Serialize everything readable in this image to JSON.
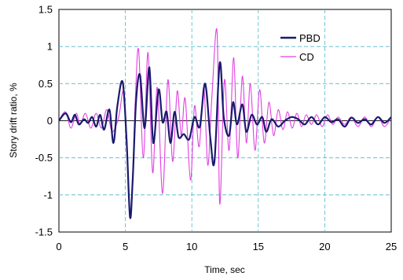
{
  "chart_data": {
    "type": "line",
    "xlabel": "Time, sec",
    "ylabel": "Story drift ratio, %",
    "xlim": [
      0,
      25
    ],
    "ylim": [
      -1.5,
      1.5
    ],
    "xticks": [
      "0",
      "5",
      "10",
      "15",
      "20",
      "25"
    ],
    "yticks": [
      "1.5",
      "1",
      "0.5",
      "0",
      "-0.5",
      "-1",
      "-1.5"
    ],
    "grid": true,
    "grid_style": "dashed",
    "legend_position": "top-right",
    "colors": {
      "PBD": "#1a1a6e",
      "CD": "#e040e0",
      "grid": "#4fb8c8",
      "zero_line": "#1a1a1a"
    },
    "series": [
      {
        "name": "PBD",
        "x": [
          0,
          0.5,
          0.9,
          1.2,
          1.5,
          1.9,
          2.2,
          2.5,
          2.8,
          3.1,
          3.4,
          3.8,
          4.1,
          4.4,
          4.8,
          5.1,
          5.35,
          5.55,
          5.8,
          6.1,
          6.45,
          6.8,
          7.1,
          7.5,
          7.8,
          8.1,
          8.4,
          8.7,
          9.0,
          9.4,
          9.8,
          10.2,
          10.6,
          11.0,
          11.4,
          11.7,
          12.1,
          12.4,
          12.8,
          13.1,
          13.4,
          13.8,
          14.1,
          14.5,
          14.9,
          15.3,
          15.6,
          16.0,
          16.5,
          17.0,
          17.5,
          18.0,
          18.5,
          19.0,
          19.5,
          20.0,
          20.5,
          21.0,
          21.5,
          22.0,
          22.5,
          23.0,
          23.5,
          24.0,
          24.5,
          25.0
        ],
        "y": [
          0,
          0.1,
          -0.02,
          0.08,
          -0.05,
          0.02,
          -0.03,
          0.05,
          -0.08,
          0.08,
          -0.12,
          0.15,
          -0.3,
          0.2,
          0.52,
          -0.3,
          -1.3,
          -0.8,
          0.25,
          0.62,
          -0.1,
          0.72,
          -0.3,
          0.42,
          -0.02,
          0.12,
          -0.3,
          0.12,
          -0.22,
          -0.18,
          -0.25,
          0.05,
          -0.08,
          0.5,
          -0.25,
          -0.55,
          0.78,
          0.05,
          -0.2,
          0.25,
          -0.05,
          0.22,
          -0.15,
          0.08,
          -0.05,
          0.05,
          -0.15,
          0.02,
          -0.08,
          0.0,
          0.05,
          0.02,
          -0.05,
          0.05,
          -0.05,
          0.05,
          -0.02,
          0.02,
          -0.08,
          0.04,
          -0.03,
          0.02,
          -0.05,
          0.05,
          -0.03,
          0.05
        ]
      },
      {
        "name": "CD",
        "x": [
          0,
          0.5,
          0.9,
          1.3,
          1.6,
          2.0,
          2.4,
          2.8,
          3.2,
          3.6,
          4.0,
          4.5,
          4.85,
          5.1,
          5.4,
          5.75,
          6.0,
          6.35,
          6.7,
          7.05,
          7.4,
          7.8,
          8.2,
          8.55,
          8.9,
          9.2,
          9.5,
          9.9,
          10.2,
          10.55,
          10.9,
          11.2,
          11.5,
          11.9,
          12.1,
          12.45,
          12.8,
          13.15,
          13.45,
          13.8,
          14.1,
          14.4,
          14.75,
          15.1,
          15.45,
          15.8,
          16.15,
          16.5,
          16.85,
          17.2,
          17.55,
          17.9,
          18.25,
          18.6,
          19.0,
          19.4,
          19.8,
          20.2,
          20.6,
          21.0,
          21.5,
          22.0,
          22.5,
          23.0,
          23.5,
          24.0,
          24.5,
          25.0
        ],
        "y": [
          0,
          0.12,
          -0.1,
          0.1,
          -0.05,
          0.1,
          -0.1,
          0.1,
          -0.1,
          0.15,
          -0.15,
          0.05,
          0.4,
          -0.2,
          -1.3,
          0.3,
          0.95,
          -0.5,
          0.92,
          -0.7,
          0.45,
          -0.98,
          0.55,
          -0.55,
          0.4,
          -0.2,
          0.3,
          -0.8,
          0.2,
          -0.35,
          0.45,
          -0.6,
          0.3,
          1.2,
          -1.12,
          0.55,
          -0.4,
          0.85,
          -0.5,
          0.6,
          -0.3,
          0.5,
          -0.4,
          0.42,
          -0.3,
          0.25,
          -0.2,
          0.15,
          -0.12,
          0.12,
          -0.1,
          0.1,
          -0.08,
          0.08,
          -0.05,
          0.08,
          -0.08,
          0.08,
          -0.05,
          0.05,
          -0.05,
          0.05,
          -0.08,
          0.05,
          -0.08,
          0.05,
          -0.08,
          0.05
        ]
      }
    ]
  }
}
